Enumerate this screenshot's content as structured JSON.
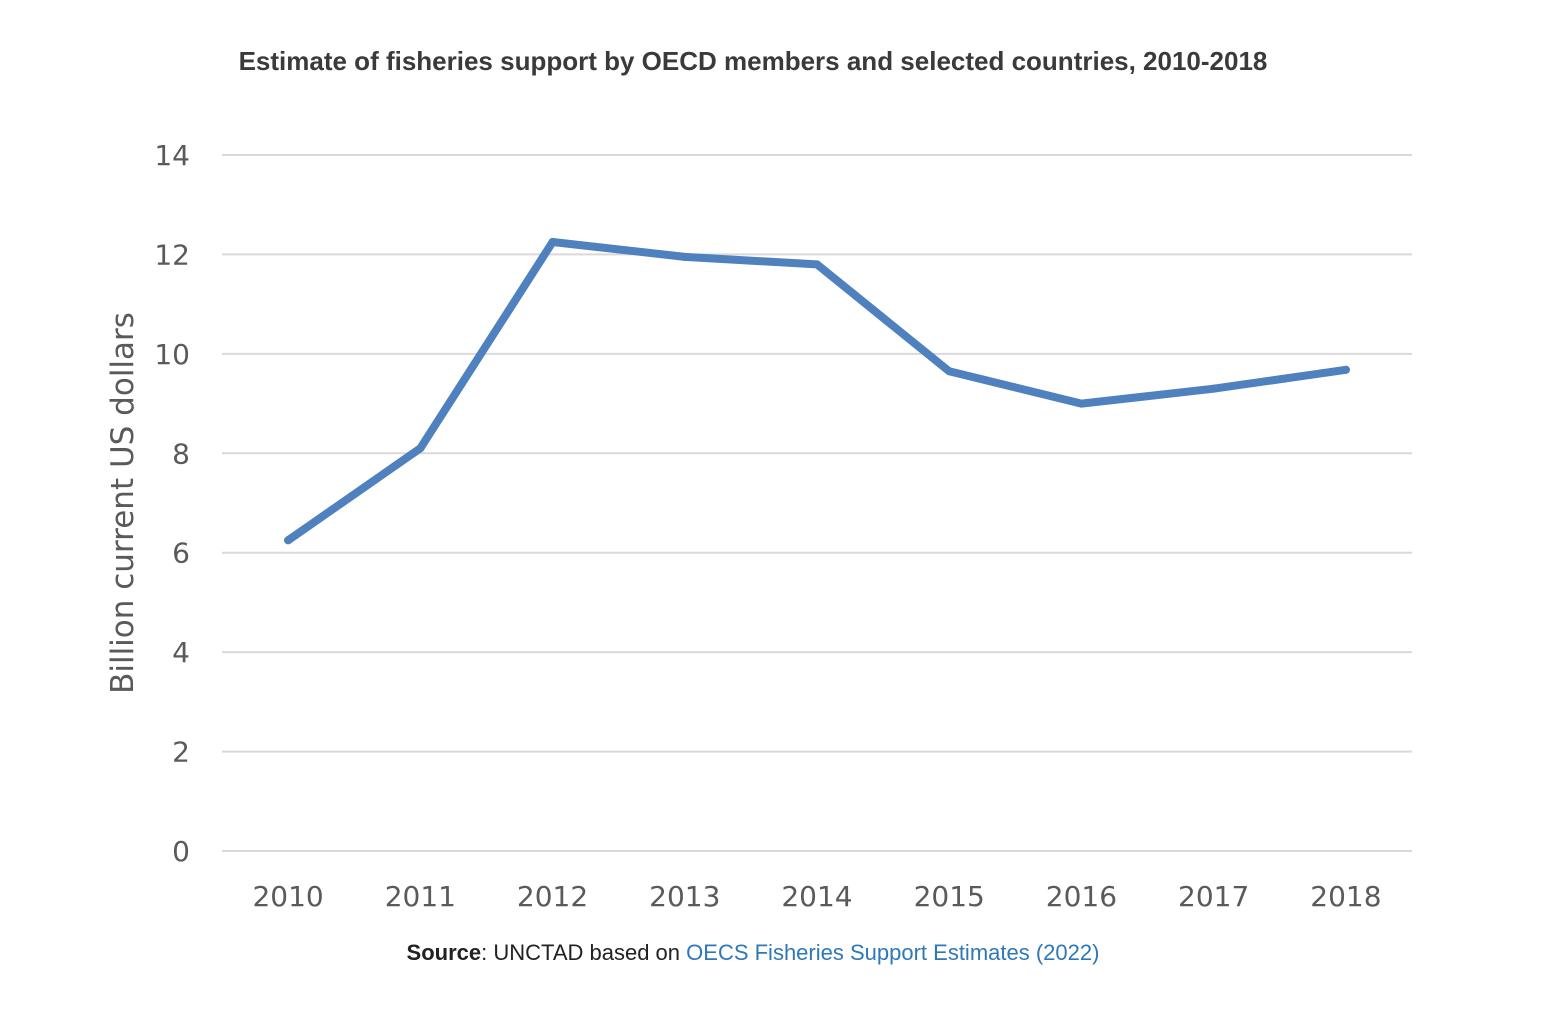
{
  "chart_data": {
    "type": "line",
    "title": "Estimate of fisheries support by OECD members and selected countries, 2010-2018",
    "xlabel": "",
    "ylabel": "Billion current US dollars",
    "categories": [
      "2010",
      "2011",
      "2012",
      "2013",
      "2014",
      "2015",
      "2016",
      "2017",
      "2018"
    ],
    "series": [
      {
        "values": [
          6.25,
          8.1,
          12.25,
          11.95,
          11.8,
          9.65,
          9.0,
          9.3,
          9.68
        ]
      }
    ],
    "ylim": [
      0,
      14
    ],
    "yticks": [
      0,
      2,
      4,
      6,
      8,
      10,
      12,
      14
    ],
    "grid": true,
    "line_color": "#4e81bd",
    "legend": "none"
  },
  "source": {
    "label": "Source",
    "text": ": UNCTAD based on ",
    "link_text": "OECS Fisheries Support Estimates (2022)",
    "link_color": "#2f78b8"
  }
}
